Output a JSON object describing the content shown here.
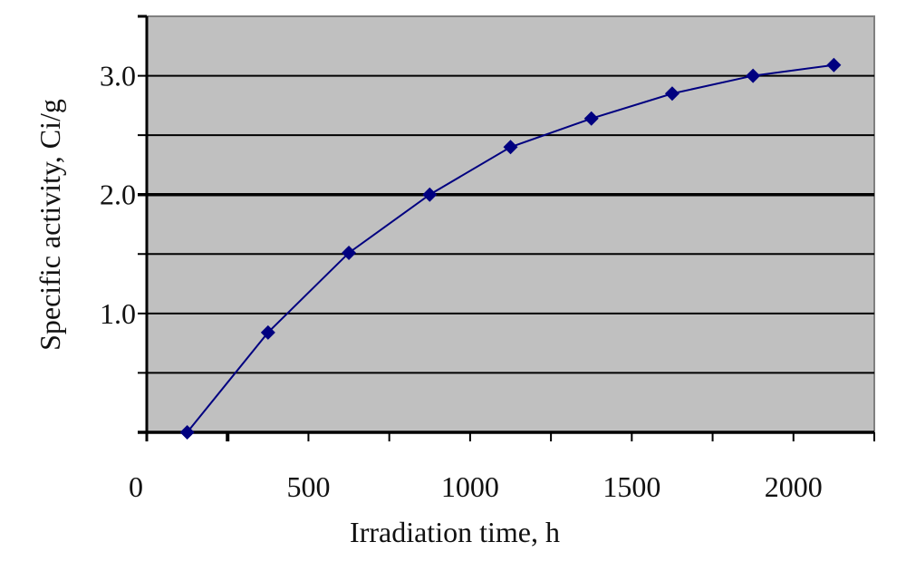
{
  "chart_data": {
    "type": "line",
    "title": "",
    "xlabel": "Irradiation time, h",
    "ylabel": "Specific activity, Ci/g",
    "xlim": [
      0,
      2250
    ],
    "ylim": [
      0,
      3.5
    ],
    "x_ticks": [
      0,
      250,
      500,
      750,
      1000,
      1250,
      1500,
      1750,
      2000,
      2250
    ],
    "x_tick_labels": [
      "0",
      "500",
      "1000",
      "1500",
      "2000"
    ],
    "x_tick_label_values": [
      0,
      500,
      1000,
      1500,
      2000
    ],
    "y_gridlines": [
      0,
      0.5,
      1.0,
      1.5,
      2.0,
      2.5,
      3.0
    ],
    "y_tick_labels": [
      "1.0",
      "2.0",
      "3.0"
    ],
    "y_tick_label_values": [
      1.0,
      2.0,
      3.0
    ],
    "grid": true,
    "legend": "none",
    "series": [
      {
        "name": "Specific activity",
        "color": "#000080",
        "marker": "diamond",
        "x": [
          125,
          375,
          625,
          875,
          1125,
          1375,
          1625,
          1875,
          2125
        ],
        "y": [
          0.0,
          0.84,
          1.51,
          2.0,
          2.4,
          2.64,
          2.85,
          3.0,
          3.09
        ]
      }
    ],
    "plot_background": "#c0c0c0"
  }
}
